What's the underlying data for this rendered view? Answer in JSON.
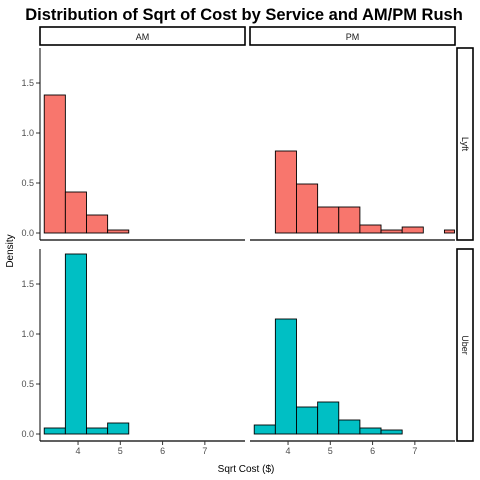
{
  "chart_data": {
    "type": "bar",
    "subtype": "faceted-histogram",
    "title": "Distribution of Sqrt of Cost by Service and AM/PM Rush",
    "xlabel": "Sqrt Cost ($)",
    "ylabel": "Density",
    "xlim": [
      3.1,
      7.95
    ],
    "x_ticks": [
      4,
      5,
      6,
      7
    ],
    "bin_width": 0.5,
    "col_facets": [
      "AM",
      "PM"
    ],
    "row_facets": [
      "Lyft",
      "Uber"
    ],
    "colors": {
      "Lyft": "#F8766D",
      "Uber": "#00BFC4"
    },
    "rows": [
      {
        "label": "Lyft",
        "ylim": [
          0,
          1.85
        ],
        "y_ticks": [
          0.0,
          0.5,
          1.0,
          1.5
        ],
        "y_tick_labels": [
          "0.0",
          "0.5",
          "1.0",
          "1.5"
        ],
        "panels": [
          {
            "facet": "AM",
            "bins": [
              {
                "x0": 3.2,
                "x1": 3.7,
                "density": 1.38
              },
              {
                "x0": 3.7,
                "x1": 4.2,
                "density": 0.41
              },
              {
                "x0": 4.2,
                "x1": 4.7,
                "density": 0.18
              },
              {
                "x0": 4.7,
                "x1": 5.2,
                "density": 0.03
              }
            ]
          },
          {
            "facet": "PM",
            "bins": [
              {
                "x0": 3.7,
                "x1": 4.2,
                "density": 0.82
              },
              {
                "x0": 4.2,
                "x1": 4.7,
                "density": 0.49
              },
              {
                "x0": 4.7,
                "x1": 5.2,
                "density": 0.26
              },
              {
                "x0": 5.2,
                "x1": 5.7,
                "density": 0.26
              },
              {
                "x0": 5.7,
                "x1": 6.2,
                "density": 0.08
              },
              {
                "x0": 6.2,
                "x1": 6.7,
                "density": 0.03
              },
              {
                "x0": 6.7,
                "x1": 7.2,
                "density": 0.06
              },
              {
                "x0": 7.7,
                "x1": 8.2,
                "density": 0.03
              }
            ]
          }
        ]
      },
      {
        "label": "Uber",
        "ylim": [
          0,
          1.85
        ],
        "y_ticks": [
          0.0,
          0.5,
          1.0,
          1.5
        ],
        "y_tick_labels": [
          "0.0",
          "0.5",
          "1.0",
          "1.5"
        ],
        "panels": [
          {
            "facet": "AM",
            "bins": [
              {
                "x0": 3.2,
                "x1": 3.7,
                "density": 0.06
              },
              {
                "x0": 3.7,
                "x1": 4.2,
                "density": 1.8
              },
              {
                "x0": 4.2,
                "x1": 4.7,
                "density": 0.06
              },
              {
                "x0": 4.7,
                "x1": 5.2,
                "density": 0.11
              }
            ]
          },
          {
            "facet": "PM",
            "bins": [
              {
                "x0": 3.2,
                "x1": 3.7,
                "density": 0.09
              },
              {
                "x0": 3.7,
                "x1": 4.2,
                "density": 1.15
              },
              {
                "x0": 4.2,
                "x1": 4.7,
                "density": 0.27
              },
              {
                "x0": 4.7,
                "x1": 5.2,
                "density": 0.32
              },
              {
                "x0": 5.2,
                "x1": 5.7,
                "density": 0.14
              },
              {
                "x0": 5.7,
                "x1": 6.2,
                "density": 0.06
              },
              {
                "x0": 6.2,
                "x1": 6.7,
                "density": 0.04
              }
            ]
          }
        ]
      }
    ],
    "grid": false
  }
}
